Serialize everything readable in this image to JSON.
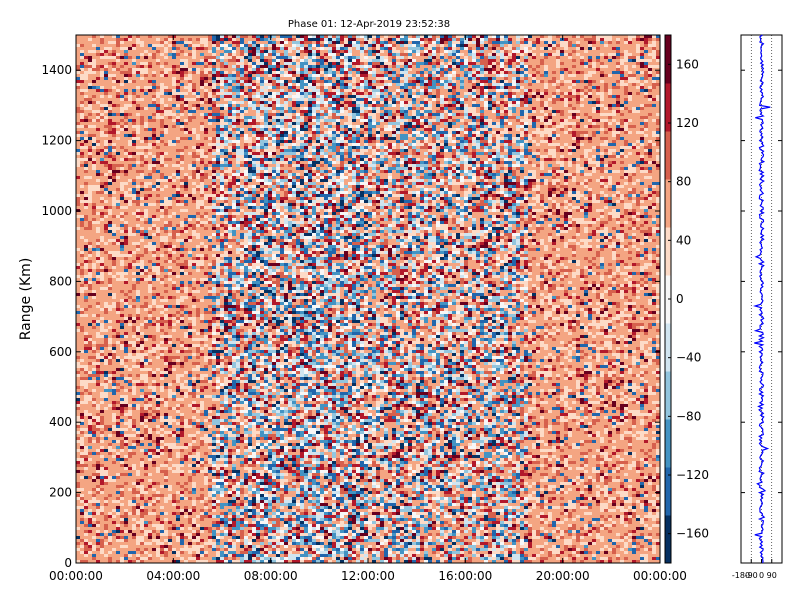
{
  "chart_data": {
    "type": "heatmap",
    "title": "Phase 01: 12-Apr-2019 23:52:38",
    "ylabel": "Range (Km)",
    "xlabel": "",
    "x_ticks": [
      "00:00:00",
      "04:00:00",
      "08:00:00",
      "12:00:00",
      "16:00:00",
      "20:00:00",
      "00:00:00"
    ],
    "x_range_hours": [
      0,
      24
    ],
    "y_ticks": [
      0,
      200,
      400,
      600,
      800,
      1000,
      1200,
      1400
    ],
    "ylim": [
      0,
      1500
    ],
    "grid": false,
    "colormap": "RdBu_r",
    "colorbar": {
      "ticks": [
        160,
        120,
        80,
        40,
        0,
        -40,
        -80,
        -120,
        -160
      ],
      "range": [
        -180,
        180
      ],
      "colors": [
        "#053061",
        "#2166ac",
        "#4393c3",
        "#92c5de",
        "#d1e5f0",
        "#f7f7f7",
        "#fddbc7",
        "#f4a582",
        "#d6604d",
        "#b2182b",
        "#67001f"
      ]
    },
    "description_of_values": "Phase in degrees; mostly positive (light orange/salmon) noise at 00:00–06:00 and 18:00–24:00, strongly mixed red/blue noise concentrated 06:00–18:00 with darkest band near 09:30.",
    "profile": {
      "type": "line",
      "x_ticks": [
        "-180",
        "-90",
        "0",
        "90"
      ],
      "xlim": [
        -180,
        180
      ],
      "ylim": [
        0,
        1500
      ],
      "color": "#0000ff",
      "center_value": 0
    }
  }
}
